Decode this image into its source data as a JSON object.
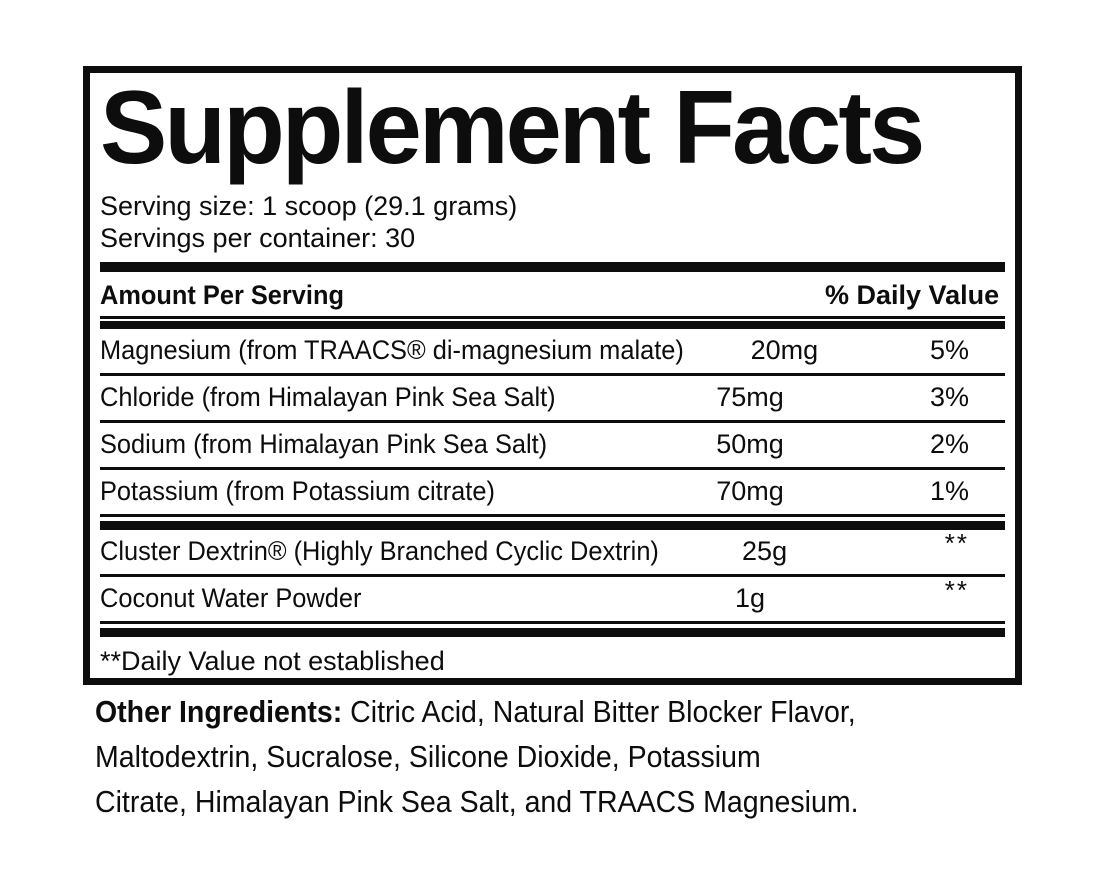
{
  "label": {
    "title": "Supplement Facts",
    "serving_size": "Serving size: 1 scoop (29.1 grams)",
    "servings_per_container": "Servings per container: 30",
    "table": {
      "header": {
        "amount_col": "Amount Per Serving",
        "dv_col": "% Daily Value"
      },
      "rows": [
        {
          "name": "Magnesium (from TRAACS® di-magnesium malate)",
          "amount": "20mg",
          "dv": "5%"
        },
        {
          "name": "Chloride (from Himalayan Pink Sea Salt)",
          "amount": "75mg",
          "dv": "3%"
        },
        {
          "name": "Sodium (from Himalayan Pink Sea Salt)",
          "amount": "50mg",
          "dv": "2%"
        },
        {
          "name": "Potassium (from Potassium citrate)",
          "amount": "70mg",
          "dv": "1%"
        },
        {
          "name": "Cluster Dextrin® (Highly Branched Cyclic Dextrin)",
          "amount": "25g",
          "dv": "**"
        },
        {
          "name": "Coconut Water Powder",
          "amount": "1g",
          "dv": "**"
        }
      ],
      "footnote": "**Daily Value not established"
    },
    "other_ingredients": {
      "label": "Other Ingredients:",
      "lines": [
        "Citric Acid, Natural Bitter Blocker Flavor,",
        "Maltodextrin, Sucralose, Silicone Dioxide, Potassium",
        "Citrate, Himalayan Pink Sea Salt, and TRAACS Magnesium."
      ]
    },
    "colors": {
      "ink": "#0d0d0d",
      "background": "#ffffff"
    }
  }
}
